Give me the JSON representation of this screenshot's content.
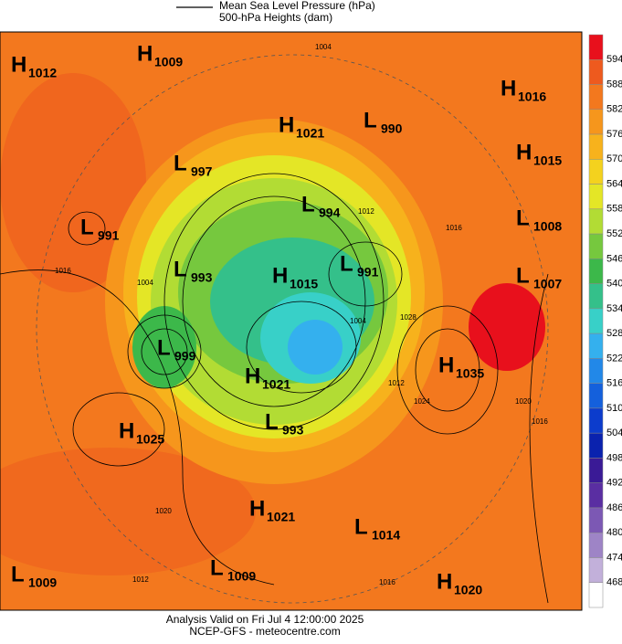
{
  "header": {
    "line_legend": "Mean Sea Level Pressure (hPa)",
    "fill_legend": "500-hPa Heights (dam)"
  },
  "pressure_centers": [
    {
      "type": "H",
      "value": "1012"
    },
    {
      "type": "H",
      "value": "1009"
    },
    {
      "type": "H",
      "value": "1016"
    },
    {
      "type": "H",
      "value": "1021"
    },
    {
      "type": "L",
      "value": "990"
    },
    {
      "type": "L",
      "value": "997"
    },
    {
      "type": "H",
      "value": "1015"
    },
    {
      "type": "L",
      "value": "994"
    },
    {
      "type": "L",
      "value": "991"
    },
    {
      "type": "L",
      "value": "1008"
    },
    {
      "type": "L",
      "value": "993"
    },
    {
      "type": "H",
      "value": "1015"
    },
    {
      "type": "L",
      "value": "991"
    },
    {
      "type": "L",
      "value": "1007"
    },
    {
      "type": "L",
      "value": "999"
    },
    {
      "type": "H",
      "value": "1035"
    },
    {
      "type": "H",
      "value": "1021"
    },
    {
      "type": "L",
      "value": "993"
    },
    {
      "type": "H",
      "value": "1025"
    },
    {
      "type": "H",
      "value": "1021"
    },
    {
      "type": "L",
      "value": "1014"
    },
    {
      "type": "L",
      "value": "1009"
    },
    {
      "type": "L",
      "value": "1009"
    },
    {
      "type": "H",
      "value": "1020"
    }
  ],
  "isobar_labels": [
    "1004",
    "1016",
    "1004",
    "1012",
    "1016",
    "1020",
    "1024",
    "1020",
    "1016",
    "1012",
    "1016",
    "1028",
    "1004",
    "1012"
  ],
  "colorbar": {
    "labels": [
      "594",
      "588",
      "582",
      "576",
      "570",
      "564",
      "558",
      "552",
      "546",
      "540",
      "534",
      "528",
      "522",
      "516",
      "510",
      "504",
      "498",
      "492",
      "486",
      "480",
      "474",
      "468"
    ],
    "colors": [
      "#e8101c",
      "#ee5a1e",
      "#f3781e",
      "#f6961c",
      "#f7b21c",
      "#f4d21e",
      "#e4e626",
      "#b2dc34",
      "#76c83e",
      "#3cb84a",
      "#34c08a",
      "#38d0c8",
      "#34b0ee",
      "#2288e8",
      "#1460dc",
      "#0c3ccc",
      "#0a22ae",
      "#3a1a96",
      "#5a2ea2",
      "#7c58b4",
      "#9e84c6",
      "#c2b0da",
      "#ffffff"
    ]
  },
  "footer": {
    "line1": "Analysis Valid on Fri Jul  4 12:00:00 2025",
    "line2": "NCEP-GFS  - meteocentre.com"
  }
}
